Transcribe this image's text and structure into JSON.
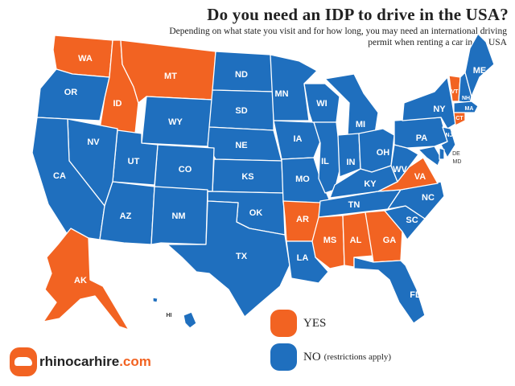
{
  "header": {
    "title": "Do you need an IDP to drive in the USA?",
    "subtitle": "Depending on what state you visit and for how long, you may need an international driving permit when renting a car in the USA"
  },
  "colors": {
    "yes": "#f26322",
    "no": "#1f6fbe"
  },
  "states": {
    "WA": "yes",
    "OR": "no",
    "ID": "yes",
    "MT": "yes",
    "WY": "no",
    "ND": "no",
    "SD": "no",
    "NE": "no",
    "KS": "no",
    "OK": "no",
    "TX": "no",
    "NM": "no",
    "AZ": "no",
    "CO": "no",
    "UT": "no",
    "NV": "no",
    "CA": "no",
    "MN": "no",
    "IA": "no",
    "MO": "no",
    "AR": "yes",
    "LA": "no",
    "WI": "no",
    "IL": "no",
    "MI": "no",
    "IN": "no",
    "OH": "no",
    "KY": "no",
    "TN": "no",
    "MS": "yes",
    "AL": "yes",
    "GA": "yes",
    "FL": "no",
    "SC": "no",
    "NC": "no",
    "VA": "yes",
    "WV": "no",
    "PA": "no",
    "NY": "no",
    "MD": "no",
    "NJ": "no",
    "DE": "no",
    "CT": "yes",
    "MA": "no",
    "VT": "yes",
    "NH": "no",
    "ME": "no",
    "AK": "yes",
    "HI": "no"
  },
  "labels": {
    "WA": "WA",
    "OR": "OR",
    "ID": "ID",
    "MT": "MT",
    "WY": "WY",
    "ND": "ND",
    "SD": "SD",
    "NE": "NE",
    "KS": "KS",
    "OK": "OK",
    "TX": "TX",
    "NM": "NM",
    "AZ": "AZ",
    "CO": "CO",
    "UT": "UT",
    "NV": "NV",
    "CA": "CA",
    "MN": "MN",
    "IA": "IA",
    "MO": "MO",
    "AR": "AR",
    "LA": "LA",
    "WI": "WI",
    "IL": "IL",
    "MI": "MI",
    "IN": "IN",
    "OH": "OH",
    "KY": "KY",
    "TN": "TN",
    "MS": "MS",
    "AL": "AL",
    "GA": "GA",
    "FL": "FL",
    "SC": "SC",
    "NC": "NC",
    "VA": "VA",
    "WV": "WV",
    "PA": "PA",
    "NY": "NY",
    "MD": "MD",
    "NJ": "NJ",
    "DE": "DE",
    "CT": "CT",
    "MA": "MA",
    "VT": "VT",
    "NH": "NH",
    "ME": "ME",
    "AK": "AK",
    "HI": "HI"
  },
  "legend": {
    "yes_label": "YES",
    "no_label": "NO",
    "no_note": "(restrictions apply)"
  },
  "logo": {
    "name": "rhinocarhire",
    "tld": ".com"
  }
}
